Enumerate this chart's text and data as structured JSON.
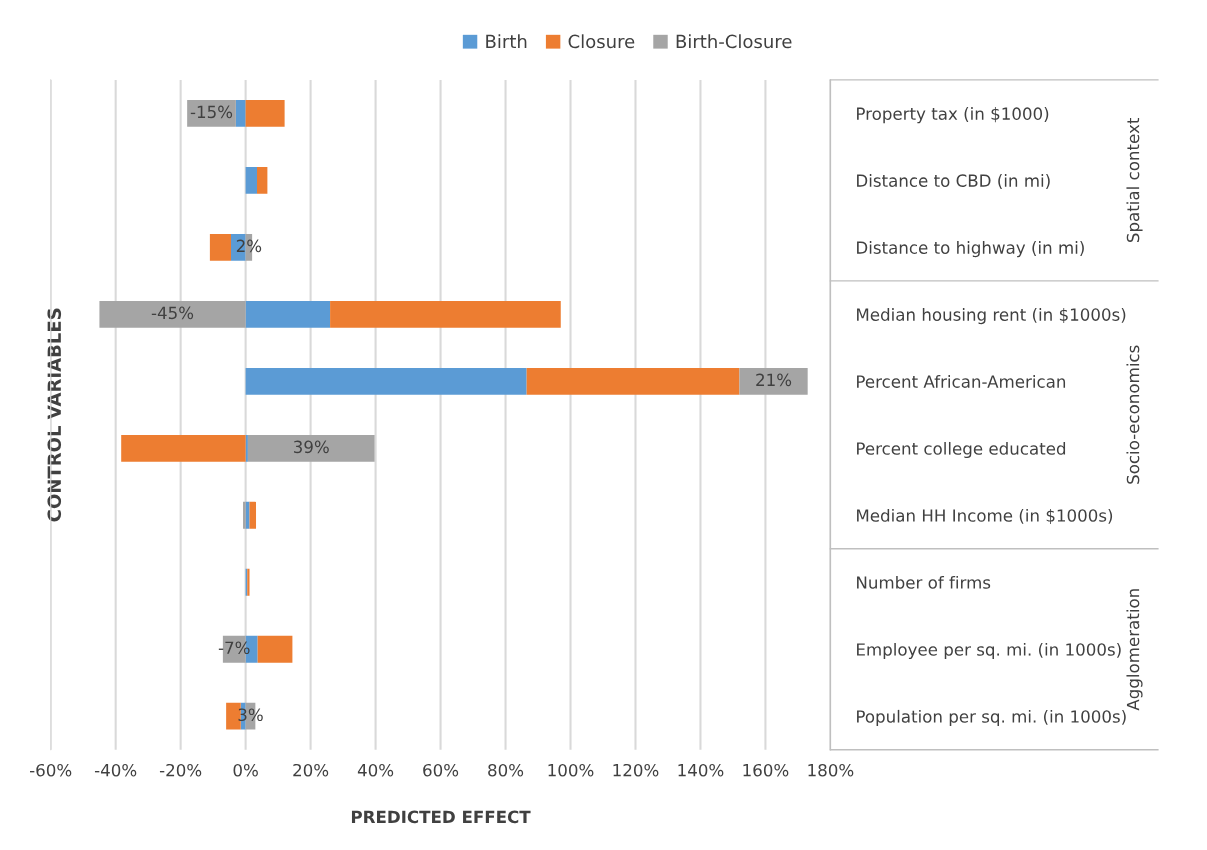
{
  "chart_data": {
    "type": "bar",
    "orientation": "horizontal",
    "stacked": true,
    "categories": [
      "Property tax (in $1000)",
      "Distance to CBD (in mi)",
      "Distance to highway (in mi)",
      "Median housing rent (in $1000s)",
      "Percent African-American",
      "Percent college educated",
      "Median HH Income (in $1000s)",
      "Number of firms",
      "Employee per sq. mi. (in 1000s)",
      "Population per sq. mi. (in 1000s)"
    ],
    "series": [
      {
        "name": "Birth",
        "color": "#5b9bd5",
        "values": [
          -3,
          3.5,
          -4.5,
          26,
          86.5,
          0.7,
          1.2,
          0.5,
          3.7,
          -1.5
        ]
      },
      {
        "name": "Closure",
        "color": "#ed7d31",
        "values": [
          12,
          3.2,
          -6.5,
          71,
          65.5,
          -38.3,
          2,
          0.7,
          10.7,
          -4.5
        ]
      },
      {
        "name": "Birth-Closure",
        "color": "#a5a5a5",
        "values": [
          -15,
          null,
          2,
          -45,
          21,
          39,
          -0.8,
          0,
          -7,
          3
        ],
        "value_labels": [
          "-15%",
          null,
          "2%",
          "-45%",
          "21%",
          "39%",
          null,
          null,
          "-7%",
          "3%"
        ]
      }
    ],
    "xlabel": "PREDICTED EFFECT",
    "ylabel": "CONTROL VARIABLES",
    "xlim": [
      -60,
      180
    ],
    "xticks": [
      {
        "value": -60,
        "label": "-60%"
      },
      {
        "value": -40,
        "label": "-40%"
      },
      {
        "value": -20,
        "label": "-20%"
      },
      {
        "value": 0,
        "label": "0%"
      },
      {
        "value": 20,
        "label": "20%"
      },
      {
        "value": 40,
        "label": "40%"
      },
      {
        "value": 60,
        "label": "60%"
      },
      {
        "value": 80,
        "label": "80%"
      },
      {
        "value": 100,
        "label": "100%"
      },
      {
        "value": 120,
        "label": "120%"
      },
      {
        "value": 140,
        "label": "140%"
      },
      {
        "value": 160,
        "label": "160%"
      },
      {
        "value": 180,
        "label": "180%"
      }
    ],
    "grid": "x",
    "legend": "top",
    "annotations": [
      "Spatial context",
      "Socio-economics",
      "Agglomeration"
    ]
  }
}
